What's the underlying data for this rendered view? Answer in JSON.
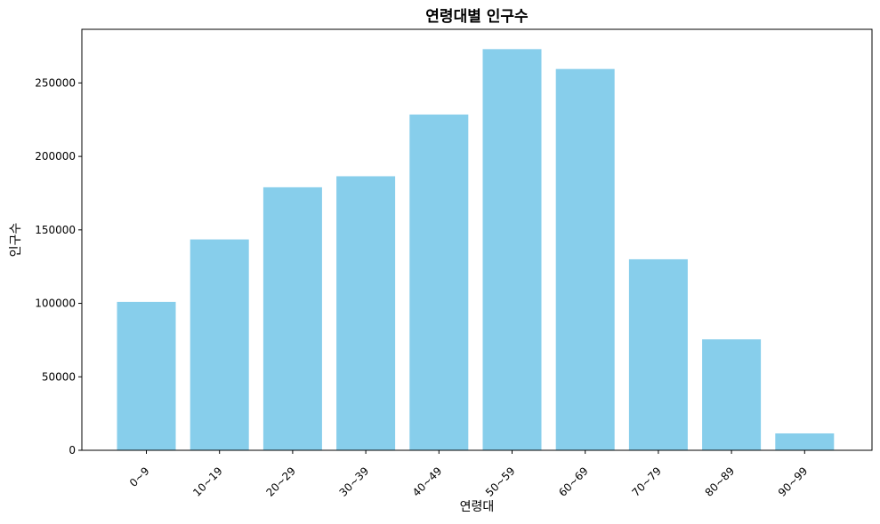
{
  "chart_data": {
    "type": "bar",
    "title": "연령대별 인구수",
    "xlabel": "연령대",
    "ylabel": "인구수",
    "categories": [
      "0~9",
      "10~19",
      "20~29",
      "30~39",
      "40~49",
      "50~59",
      "60~69",
      "70~79",
      "80~89",
      "90~99"
    ],
    "values": [
      101000,
      143500,
      179000,
      186500,
      228500,
      273000,
      259500,
      130000,
      75500,
      11500
    ],
    "ylim": [
      0,
      286500
    ],
    "yticks": [
      0,
      50000,
      100000,
      150000,
      200000,
      250000
    ],
    "grid": false,
    "legend": "none",
    "bar_color": "#87CEEB"
  }
}
